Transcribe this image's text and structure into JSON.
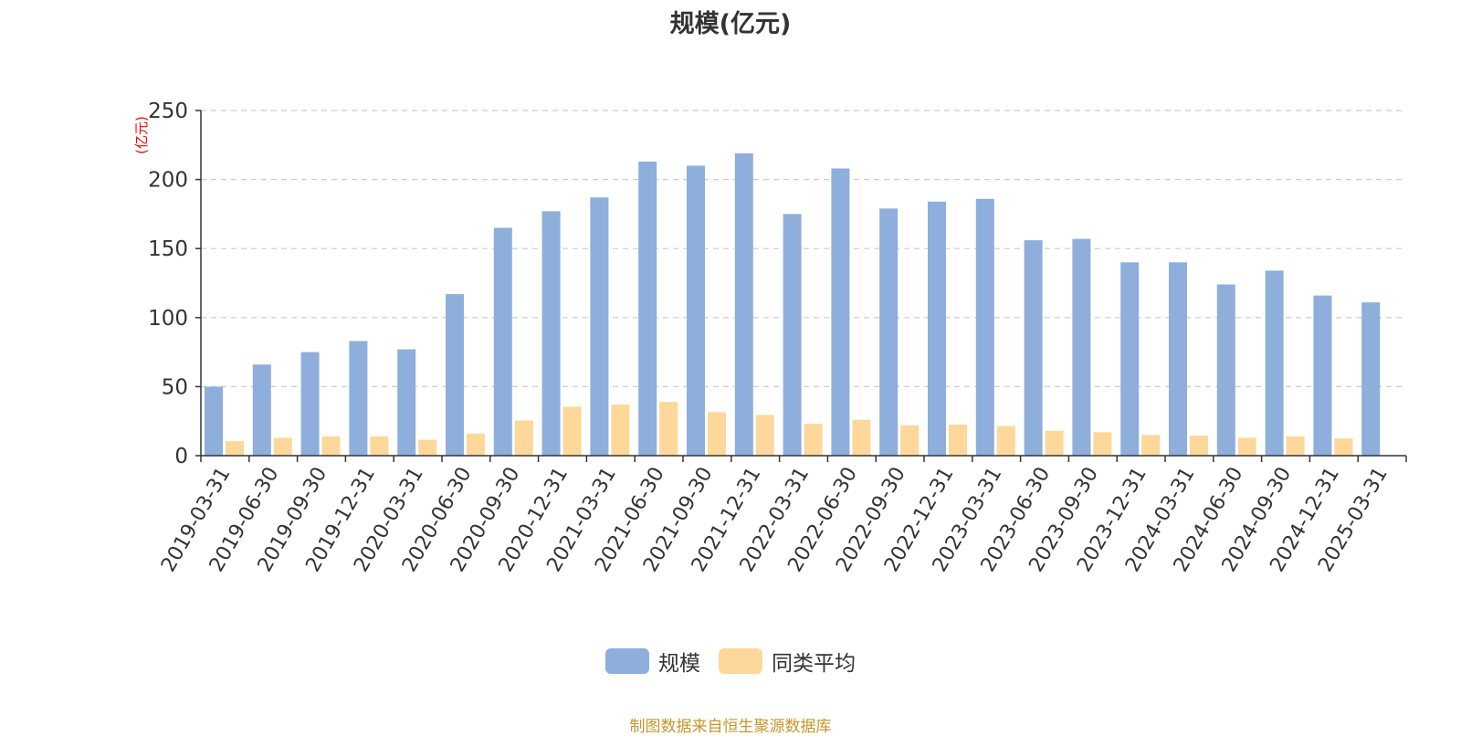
{
  "chart_data": {
    "type": "bar",
    "title": "规模(亿元)",
    "ylabel": "(亿元)",
    "xlabel": "",
    "ylim": [
      0,
      250
    ],
    "yticks": [
      "0",
      "50",
      "100",
      "150",
      "200",
      "250"
    ],
    "grid": true,
    "legend_position": "bottom",
    "categories": [
      "2019-03-31",
      "2019-06-30",
      "2019-09-30",
      "2019-12-31",
      "2020-03-31",
      "2020-06-30",
      "2020-09-30",
      "2020-12-31",
      "2021-03-31",
      "2021-06-30",
      "2021-09-30",
      "2021-12-31",
      "2022-03-31",
      "2022-06-30",
      "2022-09-30",
      "2022-12-31",
      "2023-03-31",
      "2023-06-30",
      "2023-09-30",
      "2023-12-31",
      "2024-03-31",
      "2024-06-30",
      "2024-09-30",
      "2024-12-31",
      "2025-03-31"
    ],
    "series": [
      {
        "name": "规模",
        "color": "#8eaedb",
        "values": [
          50,
          66,
          75,
          83,
          77,
          117,
          165,
          177,
          187,
          213,
          210,
          219,
          175,
          208,
          179,
          184,
          186,
          156,
          157,
          140,
          140,
          124,
          134,
          116,
          111
        ]
      },
      {
        "name": "同类平均",
        "color": "#fdd89a",
        "values": [
          10.5,
          13,
          14,
          14,
          11.5,
          16,
          25.5,
          35.5,
          37,
          39,
          31.5,
          29.5,
          23,
          26,
          22,
          22.5,
          21.5,
          18,
          17,
          15,
          14.5,
          13,
          14,
          12.5,
          null
        ]
      }
    ],
    "source_note": "制图数据来自恒生聚源数据库"
  },
  "colors": {
    "axis": "#333333",
    "grid": "#cccccc",
    "ylabel": "#ff0000",
    "source_note": "#c8962a"
  }
}
